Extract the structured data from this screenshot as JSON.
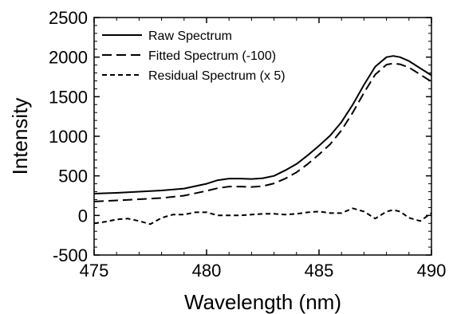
{
  "chart_data": {
    "type": "line",
    "xlabel": "Wavelength (nm)",
    "ylabel": "Intensity",
    "xlim": [
      475,
      490
    ],
    "ylim": [
      -500,
      2500
    ],
    "xticks": [
      475,
      480,
      485,
      490
    ],
    "yticks": [
      -500,
      0,
      500,
      1000,
      1500,
      2000,
      2500
    ],
    "grid": false,
    "legend_position": "top-left",
    "series": [
      {
        "name": "Raw Spectrum",
        "style": "solid",
        "x": [
          475,
          476,
          477,
          478,
          479,
          480,
          480.5,
          481,
          481.5,
          482,
          482.5,
          483,
          483.5,
          484,
          484.5,
          485,
          485.5,
          486,
          486.5,
          487,
          487.5,
          488,
          488.3,
          488.6,
          489,
          489.5,
          490
        ],
        "y": [
          275,
          285,
          300,
          315,
          340,
          400,
          445,
          465,
          465,
          460,
          470,
          500,
          570,
          650,
          760,
          880,
          1010,
          1180,
          1400,
          1650,
          1880,
          2000,
          2015,
          2000,
          1950,
          1860,
          1770
        ]
      },
      {
        "name": "Fitted Spectrum (-100)",
        "style": "dashed",
        "x": [
          475,
          476,
          477,
          478,
          479,
          480,
          480.5,
          481,
          481.5,
          482,
          482.5,
          483,
          483.5,
          484,
          484.5,
          485,
          485.5,
          486,
          486.5,
          487,
          487.5,
          488,
          488.3,
          488.6,
          489,
          489.5,
          490
        ],
        "y": [
          175,
          190,
          205,
          220,
          250,
          310,
          345,
          365,
          365,
          360,
          370,
          405,
          465,
          545,
          650,
          770,
          900,
          1075,
          1300,
          1550,
          1780,
          1905,
          1920,
          1910,
          1870,
          1780,
          1690
        ]
      },
      {
        "name": "Residual Spectrum (x 5)",
        "style": "short-dashed",
        "x": [
          475,
          475.5,
          476,
          476.5,
          477,
          477.5,
          478,
          478.5,
          479,
          479.5,
          480,
          480.5,
          481,
          481.5,
          482,
          482.5,
          483,
          483.5,
          484,
          484.5,
          485,
          485.5,
          486,
          486.5,
          487,
          487.5,
          488,
          488.3,
          488.6,
          489,
          489.5,
          490
        ],
        "y": [
          -100,
          -80,
          -50,
          -40,
          -70,
          -110,
          -30,
          10,
          10,
          40,
          40,
          0,
          0,
          0,
          10,
          20,
          20,
          10,
          20,
          40,
          50,
          30,
          30,
          90,
          50,
          -40,
          50,
          70,
          50,
          -30,
          -70,
          30
        ]
      }
    ]
  }
}
